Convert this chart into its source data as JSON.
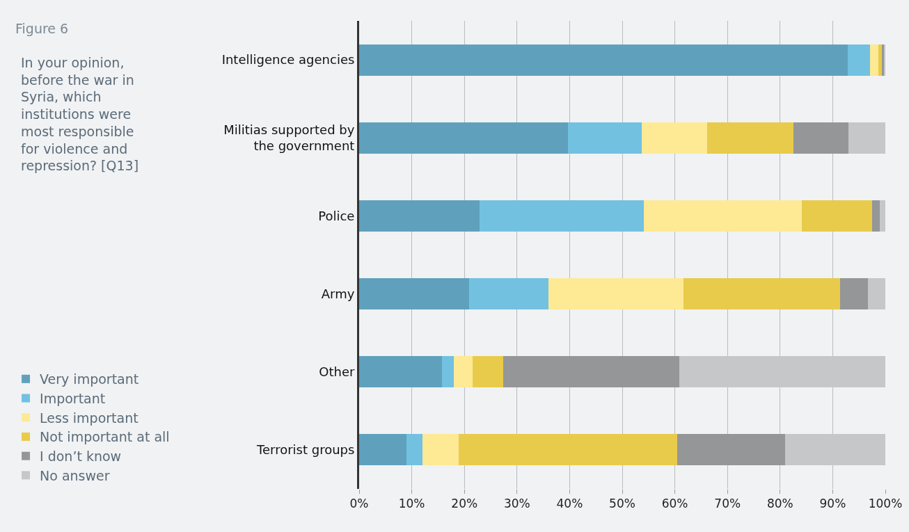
{
  "chart_data": {
    "type": "bar",
    "orientation": "horizontal",
    "stacked": true,
    "title": "Figure 6",
    "subtitle": "In your opinion, before the war in Syria, which institutions were most responsible for violence and repression? [Q13]",
    "categories": [
      "Intelligence agencies",
      "Militias supported by the government",
      "Police",
      "Army",
      "Other",
      "Terrorist groups"
    ],
    "series": [
      {
        "name": "Very important",
        "color": "#5fa1bc",
        "values": [
          92.8,
          39.7,
          22.9,
          20.9,
          15.8,
          9.0
        ]
      },
      {
        "name": "Important",
        "color": "#72c1e0",
        "values": [
          4.3,
          14.0,
          31.2,
          15.1,
          2.2,
          3.1
        ]
      },
      {
        "name": "Less important",
        "color": "#fee995",
        "values": [
          1.6,
          12.5,
          30.0,
          25.6,
          3.5,
          6.8
        ]
      },
      {
        "name": "Not important at all",
        "color": "#e8cb4a",
        "values": [
          0.6,
          16.3,
          13.4,
          29.8,
          5.9,
          41.5
        ]
      },
      {
        "name": "I don’t know",
        "color": "#959698",
        "values": [
          0.4,
          10.5,
          1.4,
          5.3,
          33.5,
          20.5
        ]
      },
      {
        "name": "No answer",
        "color": "#c6c7c9",
        "values": [
          0.3,
          7.0,
          1.1,
          3.3,
          39.1,
          19.1
        ]
      }
    ],
    "xlim": [
      0,
      100
    ],
    "xticks": [
      {
        "value": 0,
        "label": "0%"
      },
      {
        "value": 10,
        "label": "10%"
      },
      {
        "value": 20,
        "label": "20%"
      },
      {
        "value": 30,
        "label": "30%"
      },
      {
        "value": 40,
        "label": "40%"
      },
      {
        "value": 50,
        "label": "50%"
      },
      {
        "value": 60,
        "label": "60%"
      },
      {
        "value": 70,
        "label": "70%"
      },
      {
        "value": 80,
        "label": "80%"
      },
      {
        "value": 90,
        "label": "90%"
      },
      {
        "value": 100,
        "label": "100%"
      }
    ],
    "grid": "x",
    "legend": "bottom left"
  }
}
